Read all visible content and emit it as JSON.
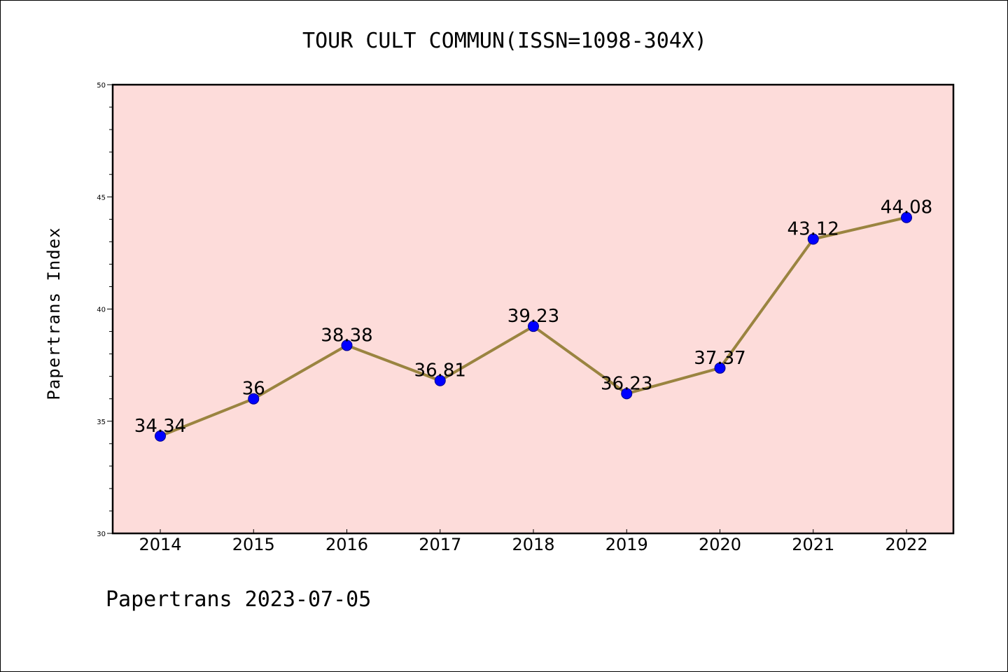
{
  "chart_data": {
    "type": "line",
    "title": "TOUR CULT COMMUN(ISSN=1098-304X)",
    "xlabel": "",
    "ylabel": "Papertrans Index",
    "categories": [
      "2014",
      "2015",
      "2016",
      "2017",
      "2018",
      "2019",
      "2020",
      "2021",
      "2022"
    ],
    "series": [
      {
        "values": [
          34.34,
          36,
          38.38,
          36.81,
          39.23,
          36.23,
          37.37,
          43.12,
          44.08
        ],
        "labels": [
          "34.34",
          "36",
          "38.38",
          "36.81",
          "39.23",
          "36.23",
          "37.37",
          "43.12",
          "44.08"
        ]
      }
    ],
    "ylim": [
      30,
      50
    ],
    "yticks": [
      "30",
      "35",
      "40",
      "45",
      "50"
    ],
    "grid": false,
    "colors": {
      "plot_background": "#fddcda",
      "line": "#9a8440",
      "marker": "#0000ff"
    }
  },
  "footer": {
    "text": "Papertrans 2023-07-05"
  }
}
